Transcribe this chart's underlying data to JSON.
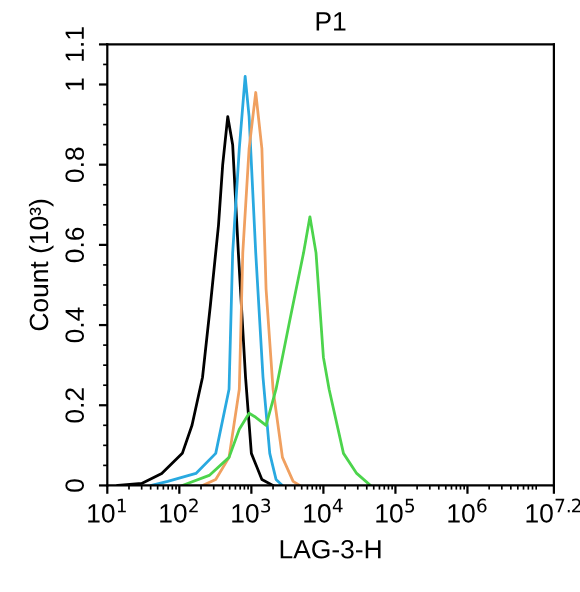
{
  "chart_data": {
    "type": "line",
    "title": "P1",
    "xlabel": "LAG-3-H",
    "ylabel": "Count (10³)",
    "log": "x",
    "xlim": [
      10,
      15848931.9
    ],
    "xticks": [
      {
        "value": 10,
        "label": "10$^{1}$"
      },
      {
        "value": 100,
        "label": "10$^{2}$"
      },
      {
        "value": 1000,
        "label": "10$^{3}$"
      },
      {
        "value": 10000,
        "label": "10$^{4}$"
      },
      {
        "value": 100000,
        "label": "10$^{5}$"
      },
      {
        "value": 1000000,
        "label": "10$^{6}$"
      },
      {
        "value": 15848931.9,
        "label": "10$^{7.2}$"
      }
    ],
    "ylim": [
      0,
      1.1
    ],
    "yticks": [
      0,
      0.2,
      0.4,
      0.6,
      0.8,
      1,
      1.1
    ],
    "grid": false,
    "legend": false,
    "marker": "none",
    "line_style": "solid",
    "series": [
      {
        "color": "#000000",
        "x": [
          14,
          30,
          57,
          110,
          150,
          210,
          270,
          350,
          400,
          470,
          550,
          660,
          830,
          1000,
          1400,
          2000
        ],
        "values": [
          0,
          0.005,
          0.03,
          0.08,
          0.15,
          0.27,
          0.45,
          0.65,
          0.8,
          0.92,
          0.85,
          0.58,
          0.27,
          0.08,
          0.015,
          0
        ]
      },
      {
        "color": "#29a9e0",
        "x": [
          41,
          69,
          170,
          320,
          490,
          550,
          680,
          820,
          930,
          1150,
          1450,
          1800,
          2200,
          2700
        ],
        "values": [
          0,
          0.01,
          0.03,
          0.08,
          0.24,
          0.58,
          0.84,
          1.02,
          0.92,
          0.58,
          0.27,
          0.08,
          0.015,
          0
        ]
      },
      {
        "color": "#f0a060",
        "x": [
          210,
          320,
          490,
          680,
          760,
          930,
          1150,
          1400,
          1600,
          2000,
          2700,
          3800,
          4700
        ],
        "values": [
          0,
          0.015,
          0.07,
          0.24,
          0.58,
          0.84,
          0.98,
          0.84,
          0.49,
          0.24,
          0.07,
          0.01,
          0
        ]
      },
      {
        "color": "#4cd44c",
        "x": [
          110,
          260,
          490,
          680,
          930,
          1150,
          1600,
          2200,
          3400,
          5300,
          6500,
          7900,
          10000,
          12000,
          19000,
          29000,
          45000
        ],
        "values": [
          0,
          0.025,
          0.07,
          0.14,
          0.18,
          0.17,
          0.15,
          0.24,
          0.41,
          0.58,
          0.67,
          0.58,
          0.32,
          0.24,
          0.08,
          0.03,
          0
        ]
      }
    ]
  }
}
